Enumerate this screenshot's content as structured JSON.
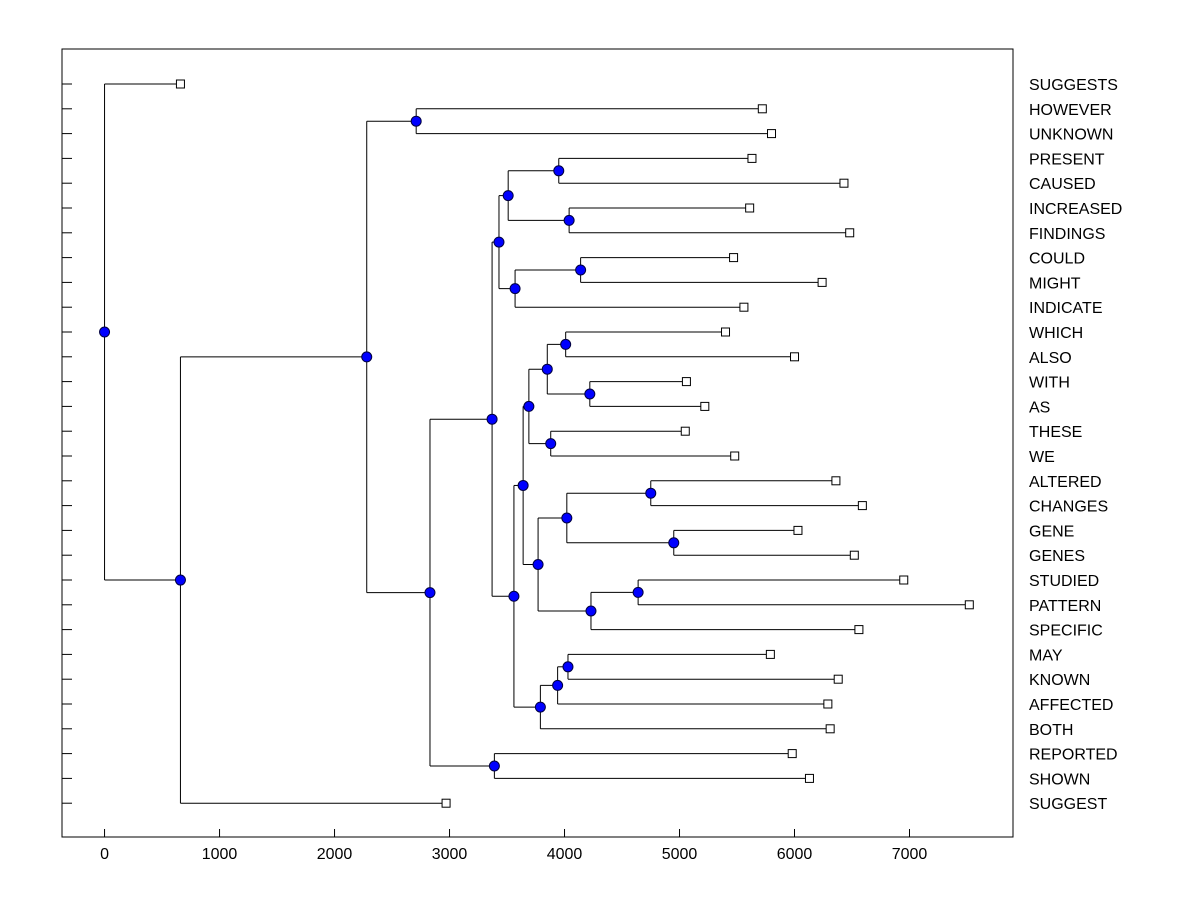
{
  "chart_data": {
    "type": "dendrogram",
    "title": "",
    "xlabel": "",
    "ylabel": "",
    "xlim": [
      -370,
      7900
    ],
    "xticks": [
      0,
      1000,
      2000,
      3000,
      4000,
      5000,
      6000,
      7000
    ],
    "xtick_labels": [
      "0",
      "1000",
      "2000",
      "3000",
      "4000",
      "5000",
      "6000",
      "7000"
    ],
    "colors": {
      "node": "#0000ff",
      "line": "#000000",
      "leaf": "#ffffff"
    },
    "leaves": [
      {
        "label": "SUGGESTS",
        "x": 660
      },
      {
        "label": "HOWEVER",
        "x": 5720
      },
      {
        "label": "UNKNOWN",
        "x": 5800
      },
      {
        "label": "PRESENT",
        "x": 5630
      },
      {
        "label": "CAUSED",
        "x": 6430
      },
      {
        "label": "INCREASED",
        "x": 5610
      },
      {
        "label": "FINDINGS",
        "x": 6480
      },
      {
        "label": "COULD",
        "x": 5470
      },
      {
        "label": "MIGHT",
        "x": 6240
      },
      {
        "label": "INDICATE",
        "x": 5560
      },
      {
        "label": "WHICH",
        "x": 5400
      },
      {
        "label": "ALSO",
        "x": 6000
      },
      {
        "label": "WITH",
        "x": 5060
      },
      {
        "label": "AS",
        "x": 5220
      },
      {
        "label": "THESE",
        "x": 5050
      },
      {
        "label": "WE",
        "x": 5480
      },
      {
        "label": "ALTERED",
        "x": 6360
      },
      {
        "label": "CHANGES",
        "x": 6590
      },
      {
        "label": "GENE",
        "x": 6030
      },
      {
        "label": "GENES",
        "x": 6520
      },
      {
        "label": "STUDIED",
        "x": 6950
      },
      {
        "label": "PATTERN",
        "x": 7520
      },
      {
        "label": "SPECIFIC",
        "x": 6560
      },
      {
        "label": "MAY",
        "x": 5790
      },
      {
        "label": "KNOWN",
        "x": 6380
      },
      {
        "label": "AFFECTED",
        "x": 6290
      },
      {
        "label": "BOTH",
        "x": 6310
      },
      {
        "label": "REPORTED",
        "x": 5980
      },
      {
        "label": "SHOWN",
        "x": 6130
      },
      {
        "label": "SUGGEST",
        "x": 2970
      }
    ],
    "merges": [
      {
        "id": "n1",
        "x": 2710,
        "a": "L1",
        "b": "L2"
      },
      {
        "id": "n2",
        "x": 3950,
        "a": "L3",
        "b": "L4"
      },
      {
        "id": "n3",
        "x": 4040,
        "a": "L5",
        "b": "L6"
      },
      {
        "id": "n4",
        "x": 3510,
        "a": "n2",
        "b": "n3"
      },
      {
        "id": "n5",
        "x": 4140,
        "a": "L7",
        "b": "L8"
      },
      {
        "id": "n6",
        "x": 3570,
        "a": "n5",
        "b": "L9"
      },
      {
        "id": "n7",
        "x": 3430,
        "a": "n4",
        "b": "n6"
      },
      {
        "id": "n8",
        "x": 4010,
        "a": "L10",
        "b": "L11"
      },
      {
        "id": "n9",
        "x": 4220,
        "a": "L12",
        "b": "L13"
      },
      {
        "id": "n10",
        "x": 3850,
        "a": "n8",
        "b": "n9"
      },
      {
        "id": "n11",
        "x": 3880,
        "a": "L14",
        "b": "L15"
      },
      {
        "id": "n12",
        "x": 3690,
        "a": "n10",
        "b": "n11"
      },
      {
        "id": "n13",
        "x": 4750,
        "a": "L16",
        "b": "L17"
      },
      {
        "id": "n14",
        "x": 4950,
        "a": "L18",
        "b": "L19"
      },
      {
        "id": "n15",
        "x": 4020,
        "a": "n13",
        "b": "n14"
      },
      {
        "id": "n16",
        "x": 4640,
        "a": "L20",
        "b": "L21"
      },
      {
        "id": "n17",
        "x": 4230,
        "a": "n16",
        "b": "L22"
      },
      {
        "id": "n18",
        "x": 3770,
        "a": "n15",
        "b": "n17"
      },
      {
        "id": "n19",
        "x": 3640,
        "a": "n12",
        "b": "n18"
      },
      {
        "id": "n20",
        "x": 4030,
        "a": "L23",
        "b": "L24"
      },
      {
        "id": "n21",
        "x": 3940,
        "a": "n20",
        "b": "L25"
      },
      {
        "id": "n22",
        "x": 3790,
        "a": "n21",
        "b": "L26"
      },
      {
        "id": "n23",
        "x": 3560,
        "a": "n19",
        "b": "n22"
      },
      {
        "id": "n24",
        "x": 3370,
        "a": "n7",
        "b": "n23"
      },
      {
        "id": "n25",
        "x": 3390,
        "a": "L27",
        "b": "L28"
      },
      {
        "id": "n26",
        "x": 2830,
        "a": "n24",
        "b": "n25"
      },
      {
        "id": "n27",
        "x": 2280,
        "a": "n1",
        "b": "n26"
      },
      {
        "id": "n28",
        "x": 660,
        "a": "n27",
        "b": "L29"
      },
      {
        "id": "n29",
        "x": 0,
        "a": "L0",
        "b": "n28"
      }
    ]
  }
}
